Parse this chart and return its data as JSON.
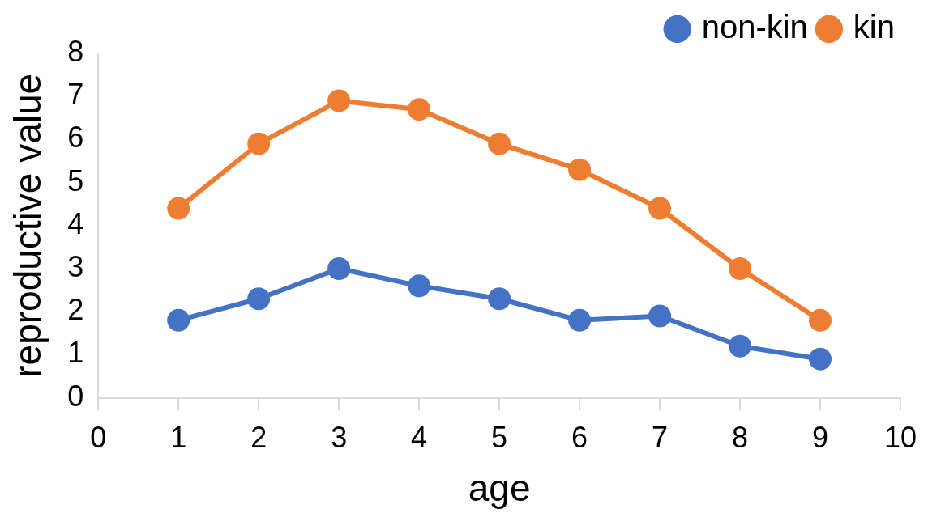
{
  "chart_data": {
    "type": "line",
    "xlabel": "age",
    "ylabel": "reproductive value",
    "x": [
      1,
      2,
      3,
      4,
      5,
      6,
      7,
      8,
      9
    ],
    "series": [
      {
        "name": "non-kin",
        "color": "#4472c4",
        "values": [
          1.8,
          2.3,
          3.0,
          2.6,
          2.3,
          1.8,
          1.9,
          1.2,
          0.9
        ]
      },
      {
        "name": "kin",
        "color": "#ed7d31",
        "values": [
          4.4,
          5.9,
          6.9,
          6.7,
          5.9,
          5.3,
          4.4,
          3.0,
          1.8
        ]
      }
    ],
    "xlim": [
      0,
      10
    ],
    "xticks": [
      0,
      1,
      2,
      3,
      4,
      5,
      6,
      7,
      8,
      9,
      10
    ],
    "ylim": [
      0,
      8
    ],
    "yticks": [
      0,
      1,
      2,
      3,
      4,
      5,
      6,
      7,
      8
    ],
    "grid": false,
    "legend": "top right",
    "marker": "circle",
    "line_style": "solid"
  }
}
